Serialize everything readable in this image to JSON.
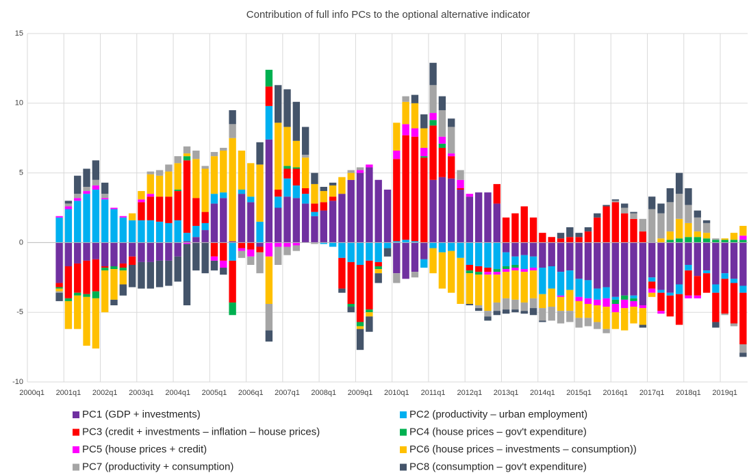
{
  "chart_data": {
    "type": "stacked-bar",
    "title": "Contribution of full info PCs to the optional alternative indicator",
    "categories": [
      "2000q1",
      null,
      null,
      null,
      "2001q1",
      null,
      null,
      null,
      "2002q1",
      null,
      null,
      null,
      "2003q1",
      null,
      null,
      null,
      "2004q1",
      null,
      null,
      null,
      "2005q1",
      null,
      null,
      null,
      "2006q1",
      null,
      null,
      null,
      "2007q1",
      null,
      null,
      null,
      "2008q1",
      null,
      null,
      null,
      "2009q1",
      null,
      null,
      null,
      "2010q1",
      null,
      null,
      null,
      "2011q1",
      null,
      null,
      null,
      "2012q1",
      null,
      null,
      null,
      "2013q1",
      null,
      null,
      null,
      "2014q1",
      null,
      null,
      null,
      "2015q1",
      null,
      null,
      null,
      "2016q1",
      null,
      null,
      null,
      "2017q1",
      null,
      null,
      null,
      "2018q1",
      null,
      null,
      null,
      "2019q1",
      null,
      null
    ],
    "ylim": [
      -10,
      15
    ],
    "yticks": [
      -10,
      -5,
      0,
      5,
      10,
      15
    ],
    "grid": true,
    "series": [
      {
        "name": "PC1 (GDP + investments)",
        "color": "#7030a0",
        "values": [
          null,
          null,
          null,
          -2.9,
          -1.7,
          -1.5,
          -1.3,
          -1.2,
          -1.7,
          -1.7,
          -1.5,
          -1.0,
          -1.4,
          -1.4,
          -1.3,
          -1.3,
          -1.0,
          0.1,
          0.4,
          0.9,
          2.8,
          3.2,
          0.1,
          3.5,
          2.9,
          -0.3,
          7.4,
          2.5,
          3.3,
          3.2,
          2.8,
          1.9,
          2.3,
          3.0,
          3.5,
          4.5,
          5.0,
          5.4,
          4.5,
          3.8,
          -2.2,
          -2.6,
          -2.1,
          -1.2,
          4.5,
          4.7,
          4.6,
          3.8,
          3.3,
          3.6,
          3.6,
          2.8,
          -0.7,
          -1.0,
          -0.9,
          -1.0,
          -1.8,
          -1.7,
          -2.1,
          -2.0,
          -2.6,
          -2.7,
          -3.3,
          -3.2,
          -3.9,
          -3.8,
          -3.8,
          -4.5,
          -2.5,
          -3.4,
          -3.6,
          -3.0,
          -1.6,
          -2.4,
          -2.0,
          -3.0,
          -2.2,
          -2.6,
          -3.1
        ]
      },
      {
        "name": "PC2 (productivity – urban employment)",
        "color": "#00b0f0",
        "values": [
          null,
          null,
          null,
          1.8,
          2.4,
          3.0,
          3.5,
          3.8,
          3.1,
          2.4,
          1.8,
          1.6,
          1.6,
          1.6,
          1.5,
          1.4,
          1.6,
          0.6,
          0.8,
          0.5,
          0.7,
          0.4,
          -1.3,
          0.3,
          0.4,
          1.5,
          2.4,
          0.8,
          1.3,
          0.9,
          0.7,
          0.3,
          -0.1,
          -0.3,
          -1.1,
          -1.4,
          -1.6,
          -1.3,
          -1.4,
          -0.4,
          0.1,
          0.2,
          0.1,
          -0.6,
          -0.4,
          -0.7,
          -0.6,
          -1.1,
          -1.6,
          -1.7,
          -1.8,
          -1.9,
          -1.0,
          -0.6,
          -1.0,
          -0.8,
          -1.9,
          -1.6,
          -1.7,
          -1.4,
          -1.3,
          -1.3,
          -0.8,
          -0.8,
          -0.2,
          0,
          -0.2,
          0,
          -0.3,
          -0.2,
          -0.2,
          -0.7,
          -0.4,
          0,
          -0.2,
          -0.6,
          -0.4,
          -0.3,
          -0.5
        ]
      },
      {
        "name": "PC3 (credit + investments – inflation – house prices)",
        "color": "#ff0000",
        "values": [
          null,
          null,
          null,
          -0.3,
          -2.3,
          -2.1,
          -2.4,
          -2.3,
          -0.1,
          0,
          -0.3,
          -0.6,
          1.3,
          1.7,
          1.8,
          1.9,
          2.1,
          5.2,
          2.0,
          0.8,
          -1.0,
          -1.3,
          -3.0,
          -0.4,
          -0.5,
          -0.4,
          1.4,
          0.5,
          0.7,
          1.2,
          0.4,
          0.6,
          0.6,
          0.3,
          -2.2,
          -3.0,
          -4.1,
          -3.5,
          -0.3,
          0,
          5.9,
          7.5,
          7.5,
          6.1,
          3.9,
          2.1,
          1.6,
          0.1,
          -0.4,
          -0.4,
          -0.3,
          1.4,
          1.8,
          2.1,
          2.6,
          1.8,
          0.7,
          0.4,
          0.3,
          0.4,
          0.4,
          0.8,
          1.8,
          2.6,
          2.9,
          2.1,
          1.7,
          0.8,
          -0.5,
          -1.3,
          -1.5,
          -2.2,
          -1.8,
          -1.4,
          -1.4,
          -2.1,
          -2.5,
          -2.9,
          -3.7
        ]
      },
      {
        "name": "PC4 (house prices – gov't expenditure)",
        "color": "#00b050",
        "values": [
          null,
          null,
          null,
          -0.1,
          -0.2,
          -0.2,
          -0.2,
          -0.5,
          -0.2,
          -0.2,
          -0.2,
          0,
          0,
          0,
          0,
          0,
          0.1,
          0.3,
          0,
          0,
          0,
          0,
          -0.9,
          0,
          0,
          0,
          1.2,
          0,
          0.2,
          0.1,
          0,
          0,
          0,
          0,
          0,
          -0.2,
          -0.3,
          -0.2,
          -0.2,
          0,
          0,
          0,
          0,
          0.1,
          0.4,
          0.3,
          0,
          0,
          -0.2,
          -0.2,
          0,
          -0.2,
          -0.2,
          -0.2,
          0,
          0,
          0,
          0,
          0,
          0,
          0,
          0,
          0,
          0,
          -0.3,
          -0.3,
          -0.2,
          0,
          0,
          0,
          0.2,
          0.3,
          0.4,
          0.4,
          0.3,
          0.2,
          0.2,
          0.2,
          0.2
        ]
      },
      {
        "name": "PC5 (house prices + credit)",
        "color": "#ff00ff",
        "values": [
          null,
          null,
          null,
          0.1,
          0.2,
          0.2,
          0.2,
          0.3,
          0.1,
          0.1,
          0.1,
          0,
          0.2,
          0.2,
          0,
          0,
          0,
          -0.1,
          0,
          0,
          -0.3,
          -0.5,
          0,
          -0.2,
          -0.5,
          0,
          -1.0,
          -0.3,
          -0.3,
          -0.2,
          0,
          0,
          0,
          0,
          0,
          0,
          0.2,
          0.2,
          0,
          0,
          0.6,
          0.8,
          0.6,
          0.6,
          0.5,
          0.5,
          0.2,
          0.6,
          0.2,
          0,
          -0.2,
          -0.2,
          -0.2,
          -0.2,
          -0.2,
          -0.2,
          0,
          0,
          -0.1,
          0,
          -0.3,
          -0.4,
          -0.4,
          -0.6,
          -0.6,
          -0.6,
          -0.4,
          -0.2,
          -0.3,
          -0.2,
          0,
          0,
          -0.2,
          -0.2,
          0,
          0,
          0,
          0,
          0.3
        ]
      },
      {
        "name": "PC6 (house prices – investments – consumption))",
        "color": "#ffc000",
        "values": [
          null,
          null,
          null,
          -0.2,
          -2.0,
          -2.4,
          -3.5,
          -3.6,
          -3.0,
          -2.2,
          -1.0,
          0.5,
          0.6,
          1.4,
          1.5,
          1.8,
          1.9,
          0.2,
          2.8,
          3.1,
          2.7,
          3.0,
          7.4,
          2.8,
          2.4,
          4.1,
          -3.4,
          4.8,
          2.8,
          1.9,
          2.2,
          1.4,
          0.8,
          0.8,
          1.2,
          0.5,
          -0.2,
          -0.3,
          -0.3,
          0,
          2.0,
          1.6,
          1.8,
          1.4,
          -1.8,
          -2.6,
          -3.0,
          -3.3,
          -2.2,
          -2.2,
          -2.6,
          -2.0,
          -1.9,
          -2.1,
          -2.2,
          -2.0,
          -1.0,
          -1.3,
          -1.0,
          -1.5,
          -1.2,
          -1.0,
          -1.2,
          -1.6,
          -1.2,
          -1.6,
          -1.2,
          -1.2,
          -0.3,
          0.3,
          0.6,
          1.4,
          1.0,
          0.4,
          0.4,
          0,
          0.1,
          0.5,
          0.7
        ]
      },
      {
        "name": "PC7 (productivity + consumption)",
        "color": "#a5a5a5",
        "values": [
          null,
          null,
          null,
          -0.1,
          0.2,
          0.3,
          0.3,
          0.4,
          0.3,
          0,
          0,
          0,
          0,
          0.2,
          0.4,
          0.5,
          0.5,
          0.5,
          0.6,
          0.2,
          0.3,
          0.2,
          1.0,
          -0.5,
          -0.6,
          -1.5,
          -1.9,
          -1.3,
          -0.6,
          -0.4,
          0.2,
          -0.1,
          0,
          0,
          0,
          0.2,
          0.2,
          0,
          0,
          0,
          -0.7,
          0.4,
          -0.4,
          0,
          2.0,
          1.9,
          1.9,
          0.7,
          0,
          -0.2,
          -0.4,
          -0.6,
          -0.8,
          -0.7,
          -0.6,
          -0.7,
          -0.9,
          -1.0,
          -0.9,
          -0.8,
          -0.7,
          -0.6,
          -0.5,
          -0.3,
          0.1,
          0.4,
          0.4,
          0.9,
          2.4,
          1.8,
          2.1,
          1.8,
          1.3,
          1.0,
          0.7,
          0.1,
          -0.1,
          -0.2,
          -0.6
        ]
      },
      {
        "name": "PC8 (consumption – gov't expenditure)",
        "color": "#44546a",
        "values": [
          null,
          null,
          null,
          -0.6,
          0.2,
          1.3,
          1.3,
          1.4,
          0.8,
          -0.4,
          -0.8,
          -1.6,
          -1.9,
          -1.9,
          -1.9,
          -1.8,
          -1.8,
          -4.4,
          -2.0,
          -2.2,
          -0.7,
          -0.5,
          1.0,
          0,
          0,
          1.6,
          -0.8,
          2.7,
          2.7,
          2.8,
          2.0,
          0.8,
          0.3,
          0.2,
          -0.3,
          -0.4,
          -1.5,
          -1.1,
          -0.7,
          -0.6,
          0,
          0,
          0.6,
          1.0,
          1.6,
          1.0,
          0.6,
          0,
          -0.1,
          -0.2,
          -0.3,
          -0.3,
          -0.3,
          -0.2,
          -0.2,
          -0.5,
          -0.1,
          0,
          0.4,
          0.7,
          0.3,
          0.3,
          0.3,
          0.1,
          0.1,
          0.3,
          0.1,
          -0.2,
          0.9,
          0.7,
          1.0,
          1.5,
          1.2,
          0.5,
          0.2,
          -0.4,
          0,
          0,
          -0.3
        ]
      }
    ]
  }
}
